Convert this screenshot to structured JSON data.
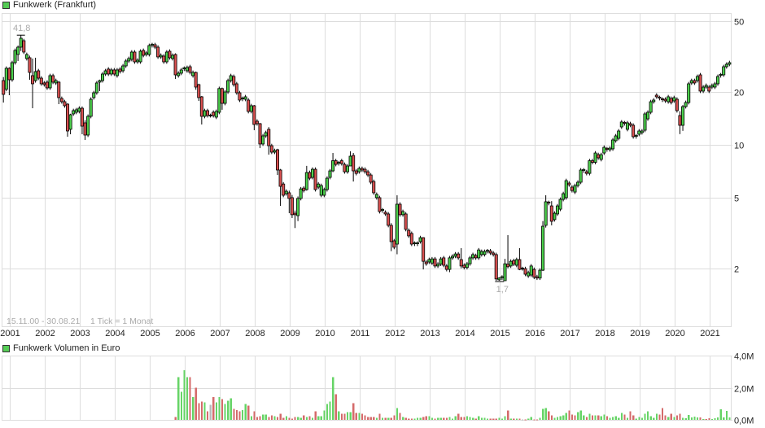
{
  "header": {
    "title": "Funkwerk (Frankfurt)",
    "volume_title": "Funkwerk Volumen in Euro",
    "date_range": "15.11.00 - 30.08.21",
    "tick_info": "1 Tick = 1 Monat"
  },
  "colors": {
    "up": "#4ccf4c",
    "down": "#d95050",
    "vol_up": "#66d466",
    "vol_down": "#d46a6a",
    "vol_neutral": "#bbbbbb",
    "grid": "#dddddd",
    "annotation": "#aaaaaa",
    "legend": "#55cc55"
  },
  "chart_data": [
    {
      "type": "candlestick",
      "title": "Funkwerk (Frankfurt)",
      "subtitle": "15.11.00 - 30.08.21   1 Tick = 1 Monat",
      "xlabel": "",
      "ylabel": "",
      "yscale": "log",
      "ylim": [
        0.95,
        55
      ],
      "grid": true,
      "legend_position": "top-left",
      "start_month": "2000-11",
      "end_month": "2021-08",
      "interval": "1 month",
      "x_tick_labels": [
        "2001",
        "2002",
        "2003",
        "2004",
        "2005",
        "2006",
        "2007",
        "2008",
        "2009",
        "2010",
        "2011",
        "2012",
        "2013",
        "2014",
        "2015",
        "2016",
        "2017",
        "2018",
        "2019",
        "2020",
        "2021"
      ],
      "y_ticks": [
        {
          "value": 50,
          "label": "50"
        },
        {
          "value": 20,
          "label": "20"
        },
        {
          "value": 10,
          "label": "10"
        },
        {
          "value": 5,
          "label": "5"
        },
        {
          "value": 2,
          "label": "2"
        }
      ],
      "annotations": [
        {
          "type": "max",
          "index": 6,
          "value": 41.8,
          "label": "41,8"
        },
        {
          "type": "min",
          "index": 170,
          "value": 1.7,
          "label": "1,7"
        }
      ],
      "default_wick_pct": 2.5,
      "open": [
        23.12,
        20.63,
        27.12,
        23.37,
        29.21,
        32.48,
        35.74,
        38.89,
        30.81,
        31.14,
        24.65,
        23.12,
        26.27,
        23.87,
        22.41,
        22.65,
        21.02,
        24.65,
        22.41,
        22.65,
        18.31,
        17.55,
        17.0,
        12.24,
        14.97,
        15.29,
        15.46,
        16.12,
        13.32,
        11.36,
        14.5,
        18.51,
        19.72,
        22.65,
        23.12,
        25.18,
        26.85,
        25.18,
        26.56,
        24.65,
        26.85,
        26.27,
        27.99,
        29.84,
        30.48,
        33.53,
        29.52,
        29.52,
        34.25,
        32.48,
        32.48,
        36.51,
        36.9,
        35.74,
        31.47,
        31.81,
        29.52,
        33.89,
        30.81,
        32.48,
        24.65,
        25.45,
        26.85,
        26.27,
        27.7,
        24.65,
        25.71,
        21.93,
        18.71,
        14.5,
        15.62,
        14.65,
        15.29,
        14.35,
        15.29,
        20.84,
        17.18,
        19.93,
        23.12,
        24.39,
        22.17,
        19.72,
        18.12,
        18.12,
        17.93,
        15.46,
        16.65,
        13.61,
        13.18,
        10.11,
        11.24,
        12.24,
        9.89,
        9.09,
        9.38,
        7.2,
        6.0,
        5.29,
        5.35,
        5.02,
        4.1,
        3.97,
        4.97,
        5.69,
        5.58,
        6.97,
        6.54,
        7.27,
        5.76,
        5.18,
        5.18,
        5.58,
        6.54,
        7.12,
        8.13,
        7.83,
        8.13,
        7.75,
        7.04,
        7.59,
        8.71,
        7.12,
        7.04,
        7.35,
        7.27,
        7.04,
        6.75,
        6.2,
        5.02,
        5.02,
        4.23,
        4.15,
        4.06,
        3.5,
        2.86,
        2.74,
        4.61,
        4.02,
        4.06,
        3.28,
        3.15,
        2.74,
        2.74,
        2.83,
        2.98,
        2.17,
        2.17,
        2.14,
        2.26,
        2.06,
        2.11,
        2.29,
        2.06,
        1.97,
        2.29,
        2.34,
        2.41,
        2.24,
        2.08,
        2.02,
        2.12,
        2.29,
        2.36,
        2.29,
        2.39,
        2.39,
        2.49,
        2.51,
        2.44,
        2.39,
        1.72,
        1.76,
        1.7,
        2.11,
        2.06,
        2.21,
        2.08,
        2.24,
        1.99,
        1.99,
        1.81,
        1.83,
        1.97,
        1.79,
        1.76,
        1.95,
        3.5,
        4.71,
        4.51,
        3.77,
        4.06,
        4.32,
        4.91,
        5.02,
        6.07,
        5.76,
        5.4,
        5.88,
        6.14,
        7.12,
        7.04,
        6.89,
        8.13,
        7.96,
        8.8,
        8.27,
        8.99,
        9.49,
        9.38,
        9.49,
        10.55,
        10.88,
        12.63,
        13.32,
        12.24,
        13.18,
        12.91,
        11.12,
        11.48,
        11.73,
        12.1,
        14.03,
        15.29,
        17.55,
        19.11,
        18.51,
        18.12,
        18.12,
        17.55,
        18.31,
        17.74,
        18.12,
        14.65,
        12.9,
        16.47,
        17.37,
        22.41,
        23.12,
        23.12,
        24.91,
        20.15,
        21.24,
        21.24,
        21.24,
        21.24,
        22.17,
        24.65,
        24.91,
        27.7,
        28.6
      ],
      "close": [
        19.31,
        27.12,
        23.37,
        29.21,
        34.25,
        35.74,
        40.16,
        33.53,
        32.48,
        25.71,
        22.17,
        25.99,
        23.87,
        22.17,
        21.93,
        21.02,
        24.65,
        22.65,
        23.12,
        18.51,
        17.55,
        16.65,
        11.98,
        14.81,
        15.62,
        15.79,
        16.12,
        12.76,
        11.36,
        14.5,
        18.12,
        19.72,
        22.41,
        23.12,
        25.18,
        26.27,
        25.18,
        26.56,
        25.18,
        26.56,
        25.99,
        27.99,
        29.84,
        30.81,
        33.53,
        29.52,
        30.16,
        33.89,
        32.14,
        33.18,
        36.51,
        36.9,
        35.74,
        31.47,
        32.14,
        29.52,
        33.53,
        31.14,
        32.14,
        24.91,
        25.45,
        26.56,
        27.12,
        27.41,
        25.71,
        25.71,
        21.24,
        18.51,
        14.5,
        15.62,
        14.65,
        14.65,
        14.65,
        15.46,
        20.84,
        17.18,
        19.93,
        23.12,
        24.65,
        21.93,
        19.72,
        17.93,
        18.31,
        18.71,
        15.46,
        16.65,
        13.04,
        13.18,
        10.11,
        11.24,
        11.73,
        9.89,
        9.09,
        9.28,
        7.2,
        5.82,
        5.18,
        5.46,
        4.97,
        4.02,
        4.02,
        4.97,
        5.63,
        5.51,
        6.97,
        6.47,
        7.27,
        5.58,
        6.0,
        5.88,
        5.58,
        6.47,
        7.12,
        8.13,
        7.75,
        7.91,
        7.83,
        7.04,
        7.59,
        8.62,
        7.12,
        6.89,
        7.35,
        7.2,
        7.04,
        6.75,
        6.14,
        5.35,
        5.24,
        4.19,
        4.28,
        4.06,
        3.5,
        2.83,
        2.63,
        4.61,
        4.02,
        4.19,
        3.32,
        3.05,
        2.74,
        2.77,
        2.77,
        2.98,
        2.19,
        2.12,
        2.24,
        2.26,
        2.06,
        2.11,
        2.26,
        2.08,
        1.97,
        2.29,
        2.34,
        2.41,
        2.29,
        2.06,
        2.02,
        2.12,
        2.29,
        2.39,
        2.29,
        2.54,
        2.49,
        2.49,
        2.51,
        2.44,
        2.39,
        1.74,
        1.76,
        1.78,
        2.12,
        2.04,
        2.19,
        2.11,
        2.24,
        1.97,
        1.99,
        1.85,
        1.89,
        2.06,
        1.78,
        1.76,
        1.95,
        3.46,
        4.76,
        4.66,
        3.69,
        4.1,
        4.51,
        4.91,
        5.29,
        6.27,
        5.94,
        5.51,
        5.88,
        6.14,
        7.2,
        7.2,
        6.89,
        8.13,
        7.96,
        8.99,
        8.44,
        8.8,
        9.68,
        9.38,
        9.58,
        10.66,
        11.24,
        11.98,
        13.47,
        13.18,
        13.32,
        12.91,
        11.12,
        11.24,
        11.98,
        11.98,
        14.97,
        15.29,
        17.55,
        17.93,
        18.71,
        18.31,
        17.93,
        17.74,
        18.71,
        17.37,
        18.51,
        15.62,
        12.9,
        16.47,
        17.37,
        22.17,
        23.12,
        22.41,
        24.39,
        20.15,
        21.24,
        21.7,
        20.15,
        21.7,
        22.17,
        24.39,
        24.91,
        27.7,
        28.6,
        29.21
      ],
      "high_low_overrides": {
        "0": [
          24.2,
          17.36
        ],
        "2": [
          27.5,
          19.1
        ],
        "5": [
          36.5,
          29.84
        ],
        "6": [
          41.8,
          34.0
        ],
        "9": [
          32.0,
          23.37
        ],
        "10": [
          30.81,
          16.12
        ],
        "11": [
          31.14,
          22.5
        ],
        "19": [
          23.0,
          17.0
        ],
        "22": [
          17.2,
          11.12
        ],
        "23": [
          15.0,
          11.48
        ],
        "27": [
          16.5,
          11.48
        ],
        "28": [
          13.8,
          10.66
        ],
        "33": [
          23.4,
          20.15
        ],
        "59": [
          33.0,
          23.6
        ],
        "66": [
          26.0,
          20.5
        ],
        "67": [
          22.2,
          17.74
        ],
        "68": [
          18.9,
          13.04
        ],
        "75": [
          21.1,
          15.8
        ],
        "86": [
          16.8,
          12.1
        ],
        "88": [
          13.3,
          9.58
        ],
        "91": [
          12.6,
          8.8
        ],
        "94": [
          9.5,
          6.75
        ],
        "95": [
          7.3,
          4.51
        ],
        "98": [
          5.5,
          4.1
        ],
        "99": [
          5.2,
          3.85
        ],
        "100": [
          4.25,
          3.38
        ],
        "101": [
          5.1,
          3.7
        ],
        "104": [
          7.6,
          5.5
        ],
        "113": [
          8.99,
          7.0
        ],
        "119": [
          9.2,
          8.4
        ],
        "120": [
          8.99,
          6.2
        ],
        "133": [
          3.6,
          2.5
        ],
        "135": [
          5.18,
          2.4
        ],
        "144": [
          3.0,
          1.97
        ],
        "153": [
          2.35,
          1.9
        ],
        "157": [
          2.6,
          2.0
        ],
        "169": [
          2.45,
          1.7
        ],
        "170": [
          1.78,
          1.7
        ],
        "172": [
          2.26,
          1.7
        ],
        "173": [
          3.08,
          2.0
        ],
        "177": [
          2.6,
          1.95
        ],
        "185": [
          3.7,
          1.93
        ],
        "186": [
          5.18,
          3.4
        ],
        "188": [
          4.8,
          3.5
        ],
        "232": [
          15.5,
          11.5
        ],
        "233": [
          16.8,
          12.0
        ]
      }
    },
    {
      "type": "bar",
      "title": "Funkwerk Volumen in Euro",
      "xlabel": "",
      "ylabel": "",
      "unit": "M EUR",
      "ylim": [
        0,
        4
      ],
      "grid": true,
      "start_month": "2005-10",
      "start_index": 59,
      "interval": "1 month",
      "y_ticks": [
        {
          "value": 4,
          "label": "4,0M"
        },
        {
          "value": 2,
          "label": "2,0M"
        },
        {
          "value": 0,
          "label": "0,0M"
        }
      ],
      "values": [
        0.17,
        2.65,
        1.74,
        3.1,
        2.65,
        2.65,
        1.43,
        1.99,
        1.03,
        1.13,
        1.08,
        0.52,
        0.93,
        1.43,
        1.08,
        1.43,
        1.28,
        0.98,
        1.18,
        1.33,
        0.68,
        0.62,
        0.52,
        0.62,
        0.98,
        0.88,
        0.22,
        0.52,
        0.17,
        0.22,
        0.32,
        0.32,
        0.17,
        0.27,
        0.22,
        0.17,
        0.37,
        0.12,
        0.22,
        0.12,
        0.07,
        0.17,
        0.17,
        0.12,
        0.27,
        0.17,
        0.22,
        0.12,
        0.52,
        0.22,
        0.22,
        0.57,
        0.98,
        1.13,
        2.65,
        1.59,
        0.52,
        0.37,
        0.37,
        0.47,
        0.47,
        1.03,
        0.42,
        0.42,
        0.37,
        0.27,
        0.17,
        0.17,
        0.17,
        0.12,
        0.37,
        0.12,
        0.12,
        0.12,
        0.12,
        0.27,
        0.73,
        0.42,
        0.17,
        0.12,
        0.07,
        0.07,
        0.07,
        0.12,
        0.12,
        0.17,
        0.22,
        0.22,
        0.12,
        0.07,
        0.12,
        0.12,
        0.12,
        0.12,
        0.17,
        0.07,
        0.22,
        0.37,
        0.17,
        0.17,
        0.22,
        0.17,
        0.12,
        0.07,
        0.22,
        0.12,
        0.12,
        0.07,
        0.07,
        0.07,
        0.07,
        0.12,
        0.07,
        0.22,
        0.57,
        0.07,
        0.07,
        0.07,
        0.07,
        0.02,
        0.02,
        0.07,
        0.17,
        0.02,
        0.02,
        0.12,
        0.68,
        0.73,
        0.52,
        0.27,
        0.12,
        0.17,
        0.22,
        0.27,
        0.42,
        0.57,
        0.32,
        0.27,
        0.47,
        0.57,
        0.27,
        0.17,
        0.37,
        0.27,
        0.27,
        0.27,
        0.22,
        0.32,
        0.22,
        0.12,
        0.17,
        0.22,
        0.12,
        0.42,
        0.32,
        0.12,
        0.52,
        0.27,
        0.07,
        0.17,
        0.12,
        0.37,
        0.52,
        0.22,
        0.12,
        0.37,
        0.32,
        0.73,
        0.27,
        0.17,
        0.37,
        0.17,
        0.27,
        0.37,
        0.12,
        0.1,
        0.3,
        0.15,
        0.2,
        0.15,
        0.15,
        0.05,
        0.05,
        0.1,
        0.05,
        0.1,
        0.15,
        0.66,
        0.15,
        0.56,
        0.15
      ],
      "colors": "rggggrgrrrgrnrggrgggrrrggrgrrrggrrgrrrgrrrggrgrgrggggggrgrrggrrgrrrrrgrgrgrrgrgrrrgggrrggrggrrgggrrrgggrggggrrrgggrgrgrnrggrrgggrrgggggrrrgggrgrgrggrgggggrgrrggggggggrrrgrgrrggggggrgrrggggggg"
    }
  ]
}
